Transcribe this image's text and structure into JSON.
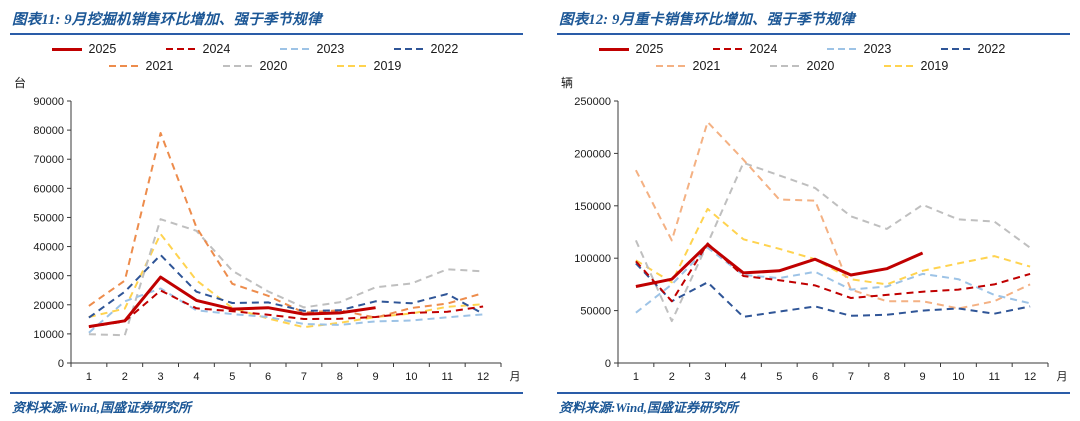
{
  "colors": {
    "accent_blue": "#2A5CA8",
    "title_blue": "#1C5796",
    "axis_color": "#3a3a3a"
  },
  "panels": [
    {
      "title": "图表11: 9月挖掘机销售环比增加、强于季节规律",
      "unit": "台",
      "source": "资料来源:Wind,国盛证券研究所"
    },
    {
      "title": "图表12: 9月重卡销售环比增加、强于季节规律",
      "unit": "辆",
      "source": "资料来源:Wind,国盛证券研究所"
    }
  ],
  "chart_data": [
    {
      "type": "line",
      "title": "图表11: 9月挖掘机销售环比增加、强于季节规律",
      "unit_label": "台",
      "xlabel": "月",
      "ylabel": "",
      "x": [
        1,
        2,
        3,
        4,
        5,
        6,
        7,
        8,
        9,
        10,
        11,
        12
      ],
      "ylim": [
        0,
        90000
      ],
      "ytick_step": 10000,
      "grid": false,
      "legend_position": "top",
      "series": [
        {
          "name": "2025",
          "color": "#C00000",
          "dash": "solid",
          "width": 3,
          "values": [
            12500,
            14500,
            29500,
            21500,
            18500,
            19000,
            16800,
            17200,
            19000
          ]
        },
        {
          "name": "2024",
          "color": "#C00000",
          "dash": "dashed",
          "width": 2,
          "values": [
            12400,
            14300,
            24900,
            18800,
            17800,
            16600,
            15100,
            15200,
            15800,
            17200,
            17600,
            19400
          ]
        },
        {
          "name": "2023",
          "color": "#9DC3E6",
          "dash": "dashed",
          "width": 2,
          "values": [
            10400,
            21200,
            25600,
            18100,
            16800,
            15800,
            13400,
            13100,
            14300,
            14600,
            15700,
            16700
          ]
        },
        {
          "name": "2022",
          "color": "#2F5597",
          "dash": "dashed",
          "width": 2,
          "values": [
            15600,
            24500,
            37100,
            24500,
            20600,
            20800,
            17900,
            18100,
            21200,
            20500,
            23700,
            16900
          ]
        },
        {
          "name": "2021",
          "color": "#ED8C4C",
          "dash": "dashed",
          "width": 2,
          "values": [
            19600,
            28300,
            79000,
            46600,
            27200,
            23100,
            17300,
            18100,
            15600,
            18900,
            20400,
            24000
          ]
        },
        {
          "name": "2020",
          "color": "#BFBFBF",
          "dash": "dashed",
          "width": 2,
          "values": [
            9900,
            9500,
            49400,
            45400,
            31700,
            24600,
            19100,
            20900,
            26000,
            27300,
            32200,
            31500
          ]
        },
        {
          "name": "2019",
          "color": "#FFD34F",
          "dash": "dashed",
          "width": 2,
          "values": [
            15800,
            18700,
            44300,
            28400,
            18900,
            15300,
            12300,
            13800,
            15800,
            17000,
            19300,
            20200
          ]
        }
      ]
    },
    {
      "type": "line",
      "title": "图表12: 9月重卡销售环比增加、强于季节规律",
      "unit_label": "辆",
      "xlabel": "月",
      "ylabel": "",
      "x": [
        1,
        2,
        3,
        4,
        5,
        6,
        7,
        8,
        9,
        10,
        11,
        12
      ],
      "ylim": [
        0,
        250000
      ],
      "ytick_step": 50000,
      "grid": false,
      "legend_position": "top",
      "series": [
        {
          "name": "2025",
          "color": "#C00000",
          "dash": "solid",
          "width": 3,
          "values": [
            73000,
            80000,
            113000,
            86000,
            88000,
            99000,
            84000,
            90000,
            105000
          ]
        },
        {
          "name": "2024",
          "color": "#C00000",
          "dash": "dashed",
          "width": 2,
          "values": [
            97000,
            59000,
            114000,
            83000,
            79000,
            74000,
            62000,
            65000,
            68000,
            70000,
            75000,
            85000
          ]
        },
        {
          "name": "2023",
          "color": "#9DC3E6",
          "dash": "dashed",
          "width": 2,
          "values": [
            48000,
            75000,
            110000,
            84000,
            81000,
            87000,
            70000,
            73000,
            85000,
            80000,
            65000,
            57000
          ]
        },
        {
          "name": "2022",
          "color": "#2F5597",
          "dash": "dashed",
          "width": 2,
          "values": [
            95000,
            59000,
            77000,
            44000,
            49000,
            54000,
            45000,
            46000,
            50000,
            52000,
            47000,
            54000
          ]
        },
        {
          "name": "2021",
          "color": "#F4B183",
          "dash": "dashed",
          "width": 2,
          "values": [
            184000,
            117000,
            230000,
            194000,
            156000,
            155000,
            70000,
            59000,
            59000,
            52000,
            59000,
            75000
          ]
        },
        {
          "name": "2020",
          "color": "#BFBFBF",
          "dash": "dashed",
          "width": 2,
          "values": [
            117000,
            40000,
            114000,
            191000,
            179000,
            167000,
            140000,
            128000,
            151000,
            137000,
            135000,
            110000
          ]
        },
        {
          "name": "2019",
          "color": "#FFD34F",
          "dash": "dashed",
          "width": 2,
          "values": [
            98000,
            77000,
            147000,
            118000,
            109000,
            99000,
            80000,
            75000,
            88000,
            95000,
            102000,
            92000
          ]
        }
      ]
    }
  ]
}
